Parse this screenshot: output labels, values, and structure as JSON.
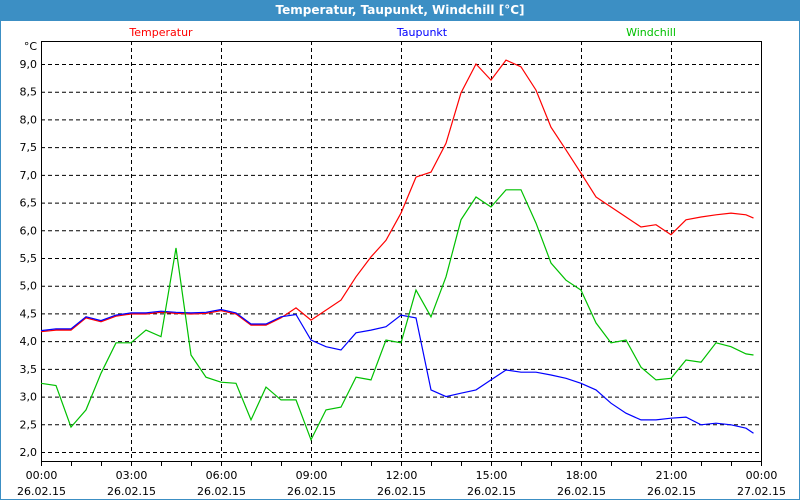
{
  "window": {
    "title": "Temperatur, Taupunkt, Windchill [°C]"
  },
  "chart_data": {
    "type": "line",
    "title": "Temperatur, Taupunkt, Windchill [°C]",
    "ylabel": "°C",
    "xlabel": "",
    "ylim": [
      2.0,
      9.0
    ],
    "xlim_hours": [
      0,
      24
    ],
    "grid": true,
    "legend_placement": "top",
    "y_ticks": [
      "2,0",
      "2,5",
      "3,0",
      "3,5",
      "4,0",
      "4,5",
      "5,0",
      "5,5",
      "6,0",
      "6,5",
      "7,0",
      "7,5",
      "8,0",
      "8,5",
      "9,0"
    ],
    "y_tick_values": [
      2.0,
      2.5,
      3.0,
      3.5,
      4.0,
      4.5,
      5.0,
      5.5,
      6.0,
      6.5,
      7.0,
      7.5,
      8.0,
      8.5,
      9.0
    ],
    "x_ticks": [
      {
        "hour": 0,
        "time": "00:00",
        "date": "26.02.15"
      },
      {
        "hour": 3,
        "time": "03:00",
        "date": "26.02.15"
      },
      {
        "hour": 6,
        "time": "06:00",
        "date": "26.02.15"
      },
      {
        "hour": 9,
        "time": "09:00",
        "date": "26.02.15"
      },
      {
        "hour": 12,
        "time": "12:00",
        "date": "26.02.15"
      },
      {
        "hour": 15,
        "time": "15:00",
        "date": "26.02.15"
      },
      {
        "hour": 18,
        "time": "18:00",
        "date": "26.02.15"
      },
      {
        "hour": 21,
        "time": "21:00",
        "date": "26.02.15"
      },
      {
        "hour": 24,
        "time": "00:00",
        "date": "27.02.15"
      }
    ],
    "x": [
      0,
      0.5,
      1,
      1.5,
      2,
      2.5,
      3,
      3.5,
      4,
      4.5,
      5,
      5.5,
      6,
      6.5,
      7,
      7.5,
      8,
      8.5,
      9,
      9.5,
      10,
      10.5,
      11,
      11.5,
      12,
      12.5,
      13,
      13.5,
      14,
      14.5,
      15,
      15.5,
      16,
      16.5,
      17,
      17.5,
      18,
      18.5,
      19,
      19.5,
      20,
      20.5,
      21,
      21.5,
      22,
      22.5,
      23,
      23.5,
      23.75
    ],
    "series": [
      {
        "name": "Temperatur",
        "color": "#ff0000",
        "values": [
          4.17,
          4.2,
          4.2,
          4.42,
          4.35,
          4.45,
          4.49,
          4.49,
          4.52,
          4.5,
          4.49,
          4.5,
          4.55,
          4.49,
          4.29,
          4.29,
          4.42,
          4.6,
          4.38,
          4.56,
          4.74,
          5.16,
          5.52,
          5.82,
          6.31,
          6.96,
          7.05,
          7.57,
          8.48,
          9.0,
          8.71,
          9.07,
          8.95,
          8.53,
          7.86,
          7.45,
          7.03,
          6.6,
          6.42,
          6.24,
          6.06,
          6.1,
          5.92,
          6.19,
          6.24,
          6.28,
          6.31,
          6.28,
          6.22
        ]
      },
      {
        "name": "Taupunkt",
        "color": "#0000ff",
        "values": [
          4.19,
          4.22,
          4.22,
          4.44,
          4.37,
          4.47,
          4.51,
          4.51,
          4.54,
          4.52,
          4.51,
          4.52,
          4.57,
          4.51,
          4.31,
          4.31,
          4.44,
          4.48,
          4.02,
          3.9,
          3.84,
          4.15,
          4.2,
          4.26,
          4.47,
          4.42,
          3.12,
          3.0,
          3.06,
          3.12,
          3.3,
          3.48,
          3.44,
          3.44,
          3.39,
          3.33,
          3.24,
          3.12,
          2.88,
          2.7,
          2.58,
          2.58,
          2.61,
          2.63,
          2.49,
          2.52,
          2.49,
          2.43,
          2.34
        ]
      },
      {
        "name": "Windchill",
        "color": "#00c000",
        "values": [
          3.24,
          3.2,
          2.45,
          2.76,
          3.42,
          3.97,
          3.97,
          4.2,
          4.08,
          5.68,
          3.75,
          3.35,
          3.26,
          3.24,
          2.58,
          3.17,
          2.94,
          2.94,
          2.22,
          2.76,
          2.81,
          3.35,
          3.3,
          4.02,
          3.97,
          4.92,
          4.44,
          5.16,
          6.19,
          6.6,
          6.42,
          6.73,
          6.73,
          6.13,
          5.41,
          5.1,
          4.92,
          4.33,
          3.97,
          4.02,
          3.53,
          3.3,
          3.33,
          3.66,
          3.62,
          3.97,
          3.9,
          3.77,
          3.75
        ]
      }
    ]
  }
}
